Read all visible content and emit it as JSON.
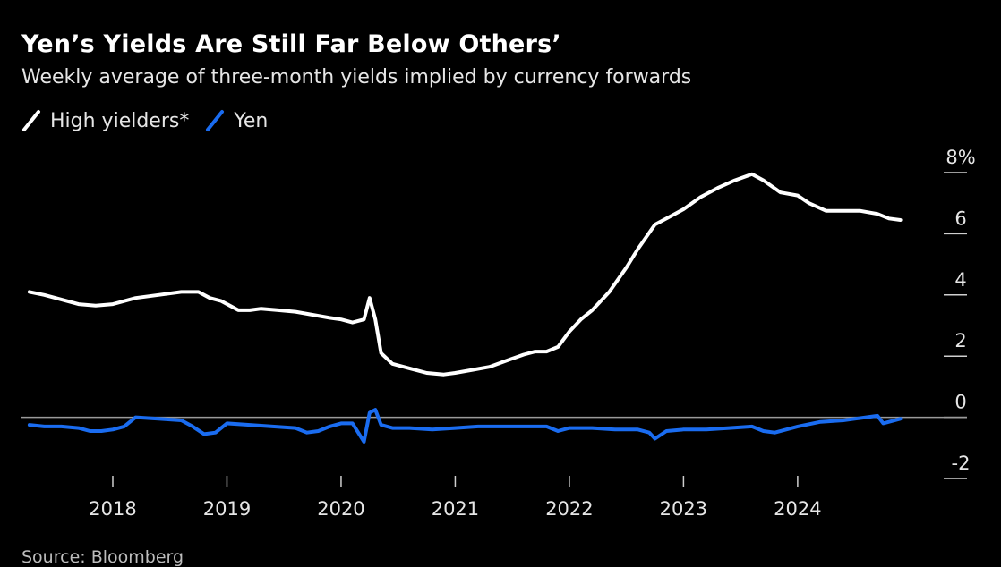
{
  "title": "Yen’s Yields Are Still Far Below Others’",
  "subtitle": "Weekly average of three-month yields implied by currency forwards",
  "source": "Source: Bloomberg",
  "legend": [
    {
      "name": "High yielders*",
      "color": "#ffffff"
    },
    {
      "name": "Yen",
      "color": "#1a6cf0"
    }
  ],
  "chart_data": {
    "type": "line",
    "xlabel": "",
    "ylabel": "",
    "xlim": [
      2017.2,
      2024.95
    ],
    "ylim": [
      -2,
      8
    ],
    "x_ticks": [
      2018,
      2019,
      2020,
      2021,
      2022,
      2023,
      2024
    ],
    "x_tick_labels": [
      "2018",
      "2019",
      "2020",
      "2021",
      "2022",
      "2023",
      "2024"
    ],
    "y_ticks": [
      -2,
      0,
      2,
      4,
      6,
      8
    ],
    "y_tick_labels": [
      "-2",
      "0",
      "2",
      "4",
      "6",
      "8%"
    ],
    "grid": false,
    "zero_line": true,
    "legend_position": "top-left",
    "series": [
      {
        "name": "High yielders*",
        "color": "#ffffff",
        "x": [
          2017.27,
          2017.4,
          2017.55,
          2017.7,
          2017.85,
          2018.0,
          2018.2,
          2018.4,
          2018.6,
          2018.75,
          2018.85,
          2018.95,
          2019.1,
          2019.2,
          2019.3,
          2019.45,
          2019.6,
          2019.75,
          2019.9,
          2020.0,
          2020.1,
          2020.2,
          2020.25,
          2020.3,
          2020.35,
          2020.45,
          2020.6,
          2020.75,
          2020.9,
          2021.0,
          2021.15,
          2021.3,
          2021.45,
          2021.6,
          2021.7,
          2021.8,
          2021.9,
          2022.0,
          2022.1,
          2022.2,
          2022.35,
          2022.5,
          2022.6,
          2022.75,
          2022.9,
          2023.0,
          2023.15,
          2023.3,
          2023.45,
          2023.6,
          2023.7,
          2023.85,
          2024.0,
          2024.1,
          2024.25,
          2024.4,
          2024.55,
          2024.7,
          2024.8,
          2024.9
        ],
        "values": [
          4.1,
          4.0,
          3.85,
          3.7,
          3.65,
          3.7,
          3.9,
          4.0,
          4.1,
          4.1,
          3.9,
          3.8,
          3.5,
          3.5,
          3.55,
          3.5,
          3.45,
          3.35,
          3.25,
          3.2,
          3.1,
          3.2,
          3.9,
          3.2,
          2.1,
          1.75,
          1.6,
          1.45,
          1.4,
          1.45,
          1.55,
          1.65,
          1.85,
          2.05,
          2.15,
          2.15,
          2.3,
          2.8,
          3.2,
          3.5,
          4.1,
          4.9,
          5.5,
          6.3,
          6.6,
          6.8,
          7.2,
          7.5,
          7.75,
          7.95,
          7.75,
          7.35,
          7.25,
          7.0,
          6.75,
          6.75,
          6.75,
          6.65,
          6.5,
          6.45
        ]
      },
      {
        "name": "Yen",
        "color": "#1a6cf0",
        "x": [
          2017.27,
          2017.4,
          2017.55,
          2017.7,
          2017.8,
          2017.9,
          2018.0,
          2018.1,
          2018.2,
          2018.4,
          2018.6,
          2018.7,
          2018.8,
          2018.9,
          2019.0,
          2019.2,
          2019.4,
          2019.6,
          2019.7,
          2019.8,
          2019.9,
          2020.0,
          2020.1,
          2020.15,
          2020.2,
          2020.25,
          2020.3,
          2020.35,
          2020.45,
          2020.6,
          2020.8,
          2021.0,
          2021.2,
          2021.4,
          2021.6,
          2021.8,
          2021.9,
          2022.0,
          2022.2,
          2022.4,
          2022.6,
          2022.7,
          2022.75,
          2022.85,
          2023.0,
          2023.2,
          2023.4,
          2023.6,
          2023.7,
          2023.8,
          2023.9,
          2024.0,
          2024.2,
          2024.4,
          2024.5,
          2024.6,
          2024.7,
          2024.75,
          2024.8,
          2024.9
        ],
        "values": [
          -0.25,
          -0.3,
          -0.3,
          -0.35,
          -0.45,
          -0.45,
          -0.4,
          -0.3,
          0.0,
          -0.05,
          -0.1,
          -0.3,
          -0.55,
          -0.5,
          -0.2,
          -0.25,
          -0.3,
          -0.35,
          -0.5,
          -0.45,
          -0.3,
          -0.2,
          -0.2,
          -0.5,
          -0.8,
          0.15,
          0.25,
          -0.25,
          -0.35,
          -0.35,
          -0.4,
          -0.35,
          -0.3,
          -0.3,
          -0.3,
          -0.3,
          -0.45,
          -0.35,
          -0.35,
          -0.4,
          -0.4,
          -0.5,
          -0.7,
          -0.45,
          -0.4,
          -0.4,
          -0.35,
          -0.3,
          -0.45,
          -0.5,
          -0.4,
          -0.3,
          -0.15,
          -0.1,
          -0.05,
          0.0,
          0.05,
          -0.2,
          -0.15,
          -0.05
        ]
      }
    ]
  }
}
